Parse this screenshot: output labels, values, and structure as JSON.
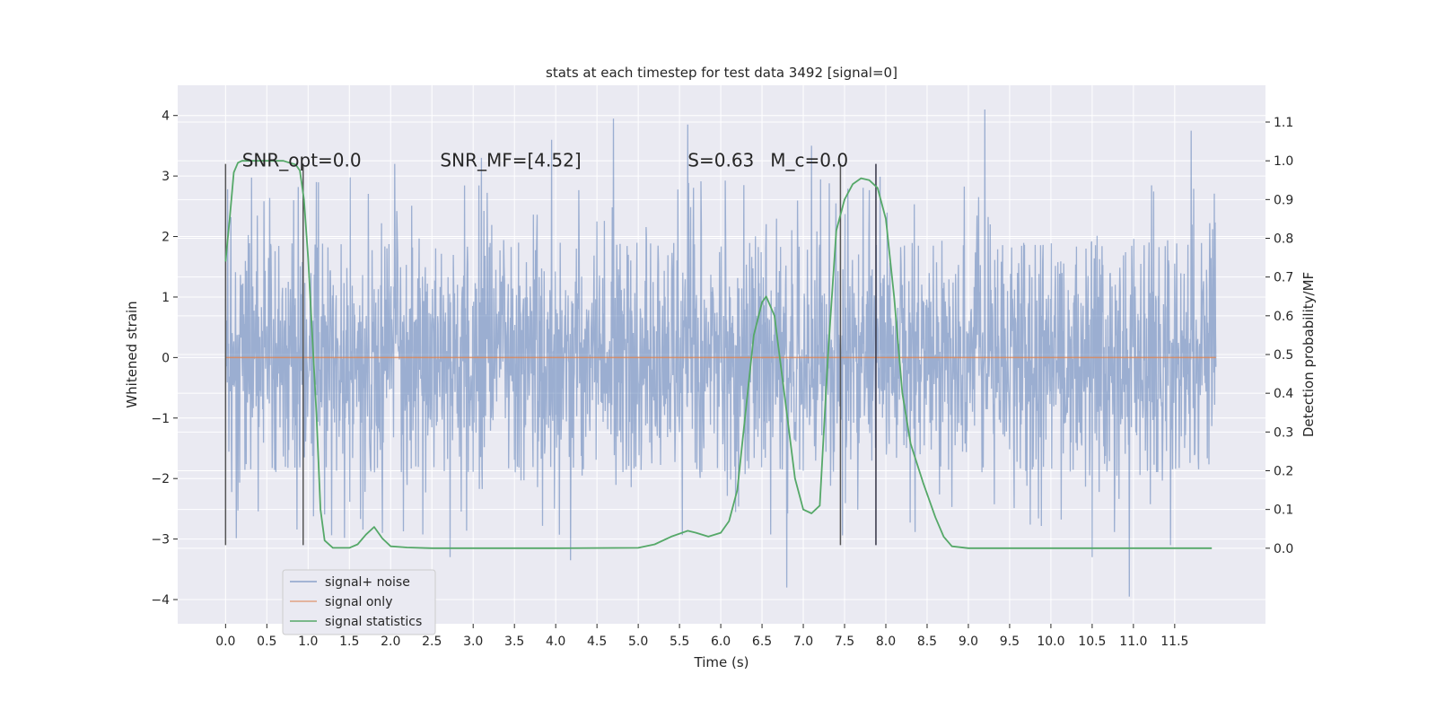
{
  "chart_data": {
    "type": "line",
    "title": "stats at each timestep for test data 3492 [signal=0]",
    "xlabel": "Time (s)",
    "ylabel": "Whitened strain",
    "y2label": "Detection probability/MF",
    "xlim": [
      -0.58,
      12.6
    ],
    "ylim": [
      -4.4,
      4.5
    ],
    "y2lim": [
      -0.195,
      1.195
    ],
    "x_ticks": [
      0.0,
      0.5,
      1.0,
      1.5,
      2.0,
      2.5,
      3.0,
      3.5,
      4.0,
      4.5,
      5.0,
      5.5,
      6.0,
      6.5,
      7.0,
      7.5,
      8.0,
      8.5,
      9.0,
      9.5,
      10.0,
      10.5,
      11.0,
      11.5
    ],
    "x_tick_labels": [
      "0.0",
      "0.5",
      "1.0",
      "1.5",
      "2.0",
      "2.5",
      "3.0",
      "3.5",
      "4.0",
      "4.5",
      "5.0",
      "5.5",
      "6.0",
      "6.5",
      "7.0",
      "7.5",
      "8.0",
      "8.5",
      "9.0",
      "9.5",
      "10.0",
      "10.5",
      "11.0",
      "11.5"
    ],
    "y_ticks": [
      -4,
      -3,
      -2,
      -1,
      0,
      1,
      2,
      3,
      4
    ],
    "y_tick_labels": [
      "−4",
      "−3",
      "−2",
      "−1",
      "0",
      "1",
      "2",
      "3",
      "4"
    ],
    "y2_ticks": [
      0.0,
      0.1,
      0.2,
      0.3,
      0.4,
      0.5,
      0.6,
      0.7,
      0.8,
      0.9,
      1.0,
      1.1
    ],
    "y2_tick_labels": [
      "0.0",
      "0.1",
      "0.2",
      "0.3",
      "0.4",
      "0.5",
      "0.6",
      "0.7",
      "0.8",
      "0.9",
      "1.0",
      "1.1"
    ],
    "grid": true,
    "legend_position": "bottom-left",
    "series": [
      {
        "name": "signal+ noise",
        "axis": "left",
        "color": "#4c72b0",
        "x_range": [
          0.0,
          12.0
        ],
        "typical_band": [
          -1.9,
          1.9
        ],
        "peaks": [
          {
            "x": 1.1,
            "y": 2.9
          },
          {
            "x": 2.05,
            "y": 3.2
          },
          {
            "x": 3.1,
            "y": 3.3
          },
          {
            "x": 3.95,
            "y": 3.6
          },
          {
            "x": 4.7,
            "y": 3.95
          },
          {
            "x": 5.6,
            "y": 3.85
          },
          {
            "x": 7.1,
            "y": 3.5
          },
          {
            "x": 9.2,
            "y": 4.1
          },
          {
            "x": 11.7,
            "y": 3.75
          },
          {
            "x": 2.72,
            "y": -3.3
          },
          {
            "x": 4.18,
            "y": -3.35
          },
          {
            "x": 6.8,
            "y": -3.8
          },
          {
            "x": 10.5,
            "y": -3.3
          },
          {
            "x": 10.95,
            "y": -3.95
          },
          {
            "x": 11.45,
            "y": -3.1
          }
        ]
      },
      {
        "name": "signal only",
        "axis": "left",
        "color": "#dd8452",
        "x": [
          0.0,
          12.0
        ],
        "y": [
          0.0,
          0.0
        ]
      },
      {
        "name": "signal statistics",
        "axis": "right",
        "color": "#55a868",
        "x": [
          0.0,
          0.05,
          0.1,
          0.15,
          0.2,
          0.3,
          0.5,
          0.7,
          0.85,
          0.9,
          0.95,
          1.0,
          1.05,
          1.1,
          1.15,
          1.2,
          1.3,
          1.5,
          1.6,
          1.7,
          1.8,
          1.9,
          2.0,
          2.2,
          2.5,
          3.0,
          4.0,
          5.0,
          5.2,
          5.4,
          5.6,
          5.7,
          5.85,
          6.0,
          6.1,
          6.2,
          6.3,
          6.4,
          6.5,
          6.55,
          6.65,
          6.8,
          6.9,
          7.0,
          7.1,
          7.2,
          7.3,
          7.4,
          7.5,
          7.6,
          7.7,
          7.8,
          7.9,
          8.0,
          8.1,
          8.2,
          8.3,
          8.45,
          8.6,
          8.7,
          8.8,
          9.0,
          10.0,
          11.0,
          11.95
        ],
        "y": [
          0.74,
          0.85,
          0.97,
          0.995,
          1.0,
          1.0,
          1.0,
          1.0,
          0.99,
          0.975,
          0.9,
          0.75,
          0.55,
          0.35,
          0.1,
          0.02,
          0.001,
          0.001,
          0.01,
          0.035,
          0.055,
          0.025,
          0.005,
          0.002,
          0.0,
          0.0,
          0.0,
          0.001,
          0.01,
          0.03,
          0.045,
          0.04,
          0.03,
          0.04,
          0.07,
          0.15,
          0.35,
          0.55,
          0.635,
          0.65,
          0.6,
          0.35,
          0.18,
          0.1,
          0.09,
          0.11,
          0.5,
          0.82,
          0.9,
          0.94,
          0.955,
          0.95,
          0.93,
          0.85,
          0.65,
          0.4,
          0.27,
          0.17,
          0.08,
          0.03,
          0.005,
          0.0,
          0.0,
          0.0,
          0.0
        ]
      }
    ],
    "vertical_lines": [
      {
        "x": 0.0,
        "y_range": [
          -3.1,
          3.2
        ],
        "color": "#555555"
      },
      {
        "x": 0.94,
        "y_range": [
          -3.1,
          3.2
        ],
        "color": "#555555"
      },
      {
        "x": 7.45,
        "y_range": [
          -3.1,
          3.2
        ],
        "color": "#555555"
      },
      {
        "x": 7.88,
        "y_range": [
          -3.1,
          3.2
        ],
        "color": "#333344"
      }
    ],
    "annotations": [
      {
        "name": "snr-opt",
        "text": "SNR_opt=0.0",
        "x": 0.2,
        "y": 3.25
      },
      {
        "name": "snr-mf",
        "text": "SNR_MF=[4.52]",
        "x": 2.6,
        "y": 3.25
      },
      {
        "name": "s-value",
        "text": "S=0.63",
        "x": 5.6,
        "y": 3.25
      },
      {
        "name": "mc-value",
        "text": "M_c=0.0",
        "x": 6.6,
        "y": 3.25
      }
    ]
  }
}
